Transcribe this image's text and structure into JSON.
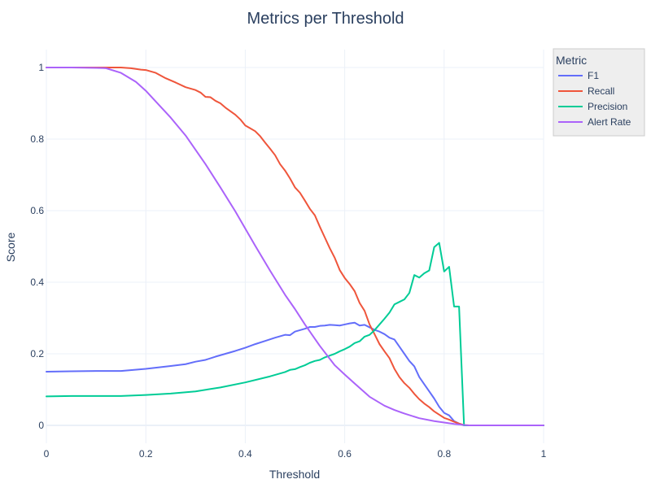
{
  "colors": {
    "background": "#ffffff",
    "grid": "#ebf0f8",
    "zero_line": "#ebf0f8",
    "text": "#2a3f5f",
    "legend_bg": "#eeeeee",
    "legend_border": "#cccccc"
  },
  "chart_data": {
    "type": "line",
    "title": "Metrics per Threshold",
    "xlabel": "Threshold",
    "ylabel": "Score",
    "xlim": [
      0,
      1
    ],
    "ylim": [
      -0.05,
      1.05
    ],
    "x_ticks": [
      0,
      0.2,
      0.4,
      0.6,
      0.8,
      1
    ],
    "x_tick_labels": [
      "0",
      "0.2",
      "0.4",
      "0.6",
      "0.8",
      "1"
    ],
    "y_ticks": [
      0,
      0.2,
      0.4,
      0.6,
      0.8,
      1
    ],
    "y_tick_labels": [
      "0",
      "0.2",
      "0.4",
      "0.6",
      "0.8",
      "1"
    ],
    "grid": true,
    "legend": {
      "title": "Metric",
      "placement": "top-right"
    },
    "series": [
      {
        "name": "F1",
        "color": "#636efa",
        "x": [
          0,
          0.05,
          0.1,
          0.15,
          0.2,
          0.25,
          0.28,
          0.3,
          0.32,
          0.34,
          0.36,
          0.38,
          0.4,
          0.42,
          0.44,
          0.46,
          0.48,
          0.49,
          0.5,
          0.51,
          0.52,
          0.53,
          0.54,
          0.55,
          0.56,
          0.57,
          0.58,
          0.59,
          0.6,
          0.61,
          0.62,
          0.63,
          0.64,
          0.65,
          0.66,
          0.67,
          0.68,
          0.69,
          0.7,
          0.71,
          0.72,
          0.73,
          0.74,
          0.75,
          0.76,
          0.77,
          0.78,
          0.79,
          0.8,
          0.81,
          0.82,
          0.83,
          0.84,
          0.85,
          0.9,
          0.95,
          1.0
        ],
        "y": [
          0.15,
          0.151,
          0.152,
          0.152,
          0.158,
          0.166,
          0.171,
          0.178,
          0.183,
          0.192,
          0.2,
          0.208,
          0.217,
          0.227,
          0.236,
          0.245,
          0.253,
          0.252,
          0.262,
          0.266,
          0.27,
          0.275,
          0.275,
          0.278,
          0.279,
          0.281,
          0.28,
          0.279,
          0.282,
          0.285,
          0.287,
          0.279,
          0.281,
          0.274,
          0.267,
          0.262,
          0.255,
          0.245,
          0.24,
          0.22,
          0.2,
          0.18,
          0.165,
          0.135,
          0.115,
          0.095,
          0.075,
          0.052,
          0.035,
          0.028,
          0.012,
          0.005,
          0.0,
          0.0,
          0.0,
          0.0,
          0.0
        ]
      },
      {
        "name": "Recall",
        "color": "#ef553b",
        "x": [
          0,
          0.05,
          0.1,
          0.15,
          0.17,
          0.19,
          0.2,
          0.22,
          0.24,
          0.26,
          0.28,
          0.3,
          0.31,
          0.32,
          0.33,
          0.34,
          0.35,
          0.36,
          0.37,
          0.38,
          0.39,
          0.4,
          0.41,
          0.42,
          0.43,
          0.44,
          0.45,
          0.46,
          0.47,
          0.48,
          0.49,
          0.5,
          0.51,
          0.52,
          0.53,
          0.54,
          0.55,
          0.56,
          0.57,
          0.58,
          0.59,
          0.6,
          0.61,
          0.62,
          0.63,
          0.64,
          0.65,
          0.66,
          0.67,
          0.68,
          0.69,
          0.7,
          0.71,
          0.72,
          0.73,
          0.74,
          0.75,
          0.76,
          0.77,
          0.78,
          0.79,
          0.8,
          0.81,
          0.82,
          0.83,
          0.84,
          0.85,
          0.9,
          0.95,
          1.0
        ],
        "y": [
          1.0,
          1.0,
          1.0,
          1.0,
          0.998,
          0.994,
          0.993,
          0.985,
          0.97,
          0.958,
          0.945,
          0.937,
          0.93,
          0.918,
          0.917,
          0.907,
          0.9,
          0.888,
          0.878,
          0.868,
          0.855,
          0.838,
          0.83,
          0.822,
          0.808,
          0.79,
          0.773,
          0.755,
          0.73,
          0.712,
          0.69,
          0.665,
          0.65,
          0.628,
          0.605,
          0.587,
          0.555,
          0.525,
          0.495,
          0.468,
          0.434,
          0.412,
          0.395,
          0.375,
          0.342,
          0.32,
          0.282,
          0.255,
          0.227,
          0.207,
          0.188,
          0.158,
          0.135,
          0.118,
          0.105,
          0.088,
          0.073,
          0.061,
          0.051,
          0.039,
          0.03,
          0.021,
          0.016,
          0.01,
          0.005,
          0.001,
          0.0,
          0.0,
          0.0,
          0.0
        ]
      },
      {
        "name": "Precision",
        "color": "#00cc96",
        "x": [
          0,
          0.05,
          0.1,
          0.15,
          0.2,
          0.25,
          0.3,
          0.35,
          0.4,
          0.45,
          0.48,
          0.49,
          0.5,
          0.51,
          0.52,
          0.53,
          0.54,
          0.55,
          0.56,
          0.57,
          0.58,
          0.59,
          0.6,
          0.61,
          0.62,
          0.63,
          0.64,
          0.65,
          0.66,
          0.67,
          0.68,
          0.69,
          0.7,
          0.71,
          0.72,
          0.73,
          0.74,
          0.75,
          0.76,
          0.77,
          0.78,
          0.79,
          0.8,
          0.81,
          0.82,
          0.83,
          0.84,
          0.85,
          0.9,
          0.95,
          1.0
        ],
        "y": [
          0.081,
          0.082,
          0.082,
          0.082,
          0.085,
          0.089,
          0.095,
          0.106,
          0.12,
          0.137,
          0.149,
          0.155,
          0.157,
          0.163,
          0.168,
          0.175,
          0.18,
          0.183,
          0.19,
          0.195,
          0.2,
          0.207,
          0.213,
          0.22,
          0.23,
          0.235,
          0.248,
          0.253,
          0.266,
          0.282,
          0.298,
          0.315,
          0.338,
          0.345,
          0.352,
          0.37,
          0.42,
          0.413,
          0.425,
          0.433,
          0.498,
          0.51,
          0.43,
          0.443,
          0.332,
          0.332,
          0.0,
          0.0,
          0.0,
          0.0,
          0.0
        ]
      },
      {
        "name": "Alert Rate",
        "color": "#ab63fa",
        "x": [
          0,
          0.05,
          0.1,
          0.12,
          0.15,
          0.18,
          0.2,
          0.22,
          0.25,
          0.28,
          0.3,
          0.32,
          0.35,
          0.38,
          0.4,
          0.42,
          0.45,
          0.48,
          0.5,
          0.52,
          0.55,
          0.58,
          0.6,
          0.62,
          0.65,
          0.68,
          0.7,
          0.72,
          0.75,
          0.78,
          0.8,
          0.82,
          0.84,
          0.85,
          0.9,
          0.95,
          1.0
        ],
        "y": [
          1.0,
          1.0,
          0.999,
          0.998,
          0.985,
          0.96,
          0.935,
          0.905,
          0.86,
          0.81,
          0.77,
          0.73,
          0.665,
          0.598,
          0.55,
          0.502,
          0.432,
          0.365,
          0.325,
          0.282,
          0.222,
          0.168,
          0.142,
          0.117,
          0.08,
          0.055,
          0.043,
          0.033,
          0.02,
          0.012,
          0.008,
          0.004,
          0.001,
          0.0,
          0.0,
          0.0,
          0.0
        ]
      }
    ]
  }
}
